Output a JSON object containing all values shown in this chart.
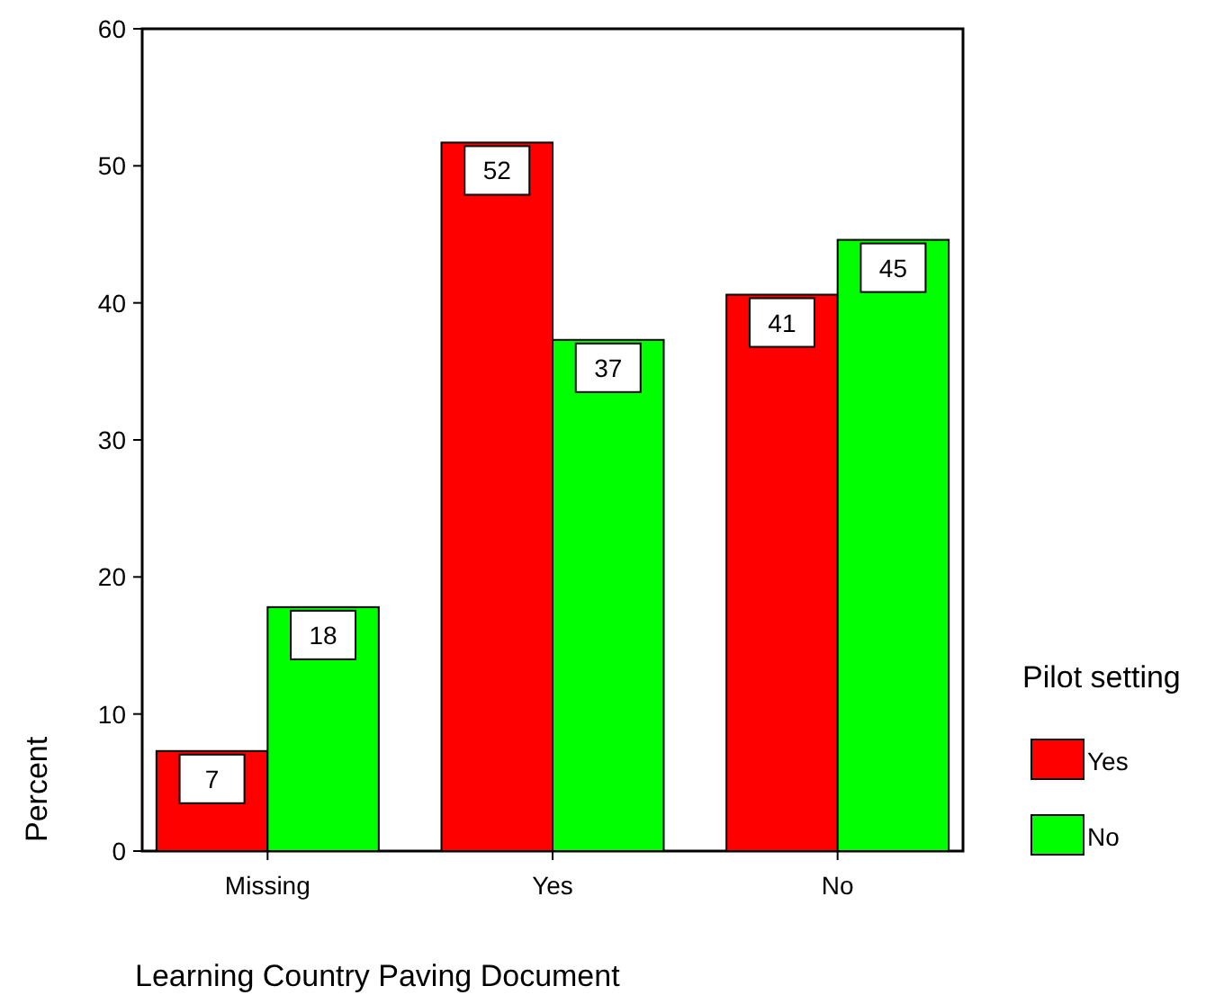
{
  "chart_data": {
    "type": "bar",
    "xlabel": "Learning Country Paving Document",
    "ylabel": "Percent",
    "legend_title": "Pilot setting",
    "categories": [
      "Missing",
      "Yes",
      "No"
    ],
    "series": [
      {
        "name": "Yes",
        "color": "#ff0000",
        "values": [
          7.3,
          51.7,
          40.6
        ],
        "value_labels": [
          "7",
          "52",
          "41"
        ]
      },
      {
        "name": "No",
        "color": "#00ff00",
        "values": [
          17.8,
          37.3,
          44.6
        ],
        "value_labels": [
          "18",
          "37",
          "45"
        ]
      }
    ],
    "ylim": [
      0,
      60
    ],
    "yticks": [
      0,
      10,
      20,
      30,
      40,
      50,
      60
    ],
    "legend": "right",
    "grid": false
  }
}
